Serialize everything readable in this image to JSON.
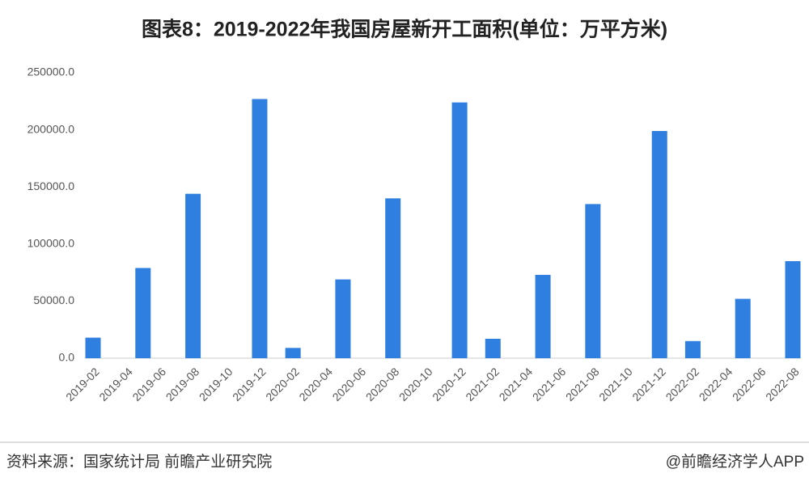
{
  "chart_data": {
    "type": "bar",
    "title": "图表8：2019-2022年我国房屋新开工面积(单位：万平方米)",
    "categories": [
      "2019-02",
      null,
      "2019-04",
      null,
      "2019-06",
      null,
      "2019-08",
      null,
      "2019-10",
      null,
      "2019-12",
      null,
      "2020-02",
      null,
      "2020-04",
      null,
      "2020-06",
      null,
      "2020-08",
      null,
      "2020-10",
      null,
      "2020-12",
      null,
      "2021-02",
      null,
      "2021-04",
      null,
      "2021-06",
      null,
      "2021-08",
      null,
      "2021-10",
      null,
      "2021-12",
      null,
      "2022-02",
      null,
      "2022-04",
      null,
      "2022-06",
      null,
      "2022-08"
    ],
    "values": [
      18000,
      null,
      null,
      79000,
      null,
      null,
      144000,
      null,
      null,
      null,
      227000,
      null,
      9000,
      null,
      null,
      69000,
      null,
      null,
      140000,
      null,
      null,
      null,
      224000,
      null,
      17000,
      null,
      null,
      73000,
      null,
      null,
      135000,
      null,
      null,
      null,
      199000,
      null,
      15000,
      null,
      null,
      52000,
      null,
      null,
      85000
    ],
    "color": "#2e7fe0",
    "ylim": [
      0,
      250000
    ],
    "yticks": [
      {
        "value": 0,
        "label": "0.0"
      },
      {
        "value": 50000,
        "label": "50000.0"
      },
      {
        "value": 100000,
        "label": "100000.0"
      },
      {
        "value": 150000,
        "label": "150000.0"
      },
      {
        "value": 200000,
        "label": "200000.0"
      },
      {
        "value": 250000,
        "label": "250000.0"
      }
    ],
    "grid": false,
    "source": "资料来源：国家统计局 前瞻产业研究院",
    "credit": "@前瞻经济学人APP"
  }
}
